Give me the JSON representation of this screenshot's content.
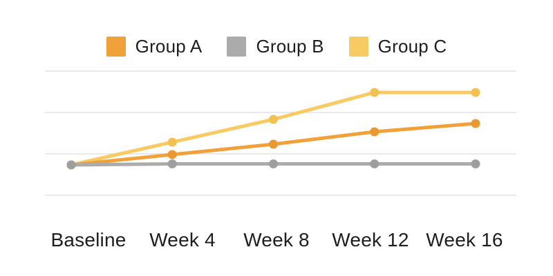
{
  "page": {
    "background_color": "#ffffff",
    "text_color": "#1e1e1e",
    "gridline_color": "#e2e2e2"
  },
  "legend": {
    "items": [
      {
        "label": "Group A",
        "color": "#F0A139"
      },
      {
        "label": "Group B",
        "color": "#ABABAB"
      },
      {
        "label": "Group C",
        "color": "#F8CA63"
      }
    ]
  },
  "chart_data": {
    "type": "line",
    "title": "",
    "xlabel": "",
    "ylabel": "",
    "categories": [
      "Baseline",
      "Week 4",
      "Week 8",
      "Week 12",
      "Week 16"
    ],
    "series": [
      {
        "name": "Group A",
        "color": "#F0A139",
        "marker_color": "#E9992F",
        "values": [
          0,
          5,
          10,
          16,
          20
        ]
      },
      {
        "name": "Group B",
        "color": "#ABABAB",
        "marker_color": "#9E9E9E",
        "values": [
          0,
          0.5,
          0.5,
          0.5,
          0.5
        ]
      },
      {
        "name": "Group C",
        "color": "#F8CA63",
        "marker_color": "#F3C052",
        "values": [
          0,
          11,
          22,
          35,
          35
        ]
      }
    ],
    "ylim": [
      -15,
      45
    ],
    "grid": true,
    "y_axis_tick_labels_visible": false,
    "legend_position": "top"
  }
}
